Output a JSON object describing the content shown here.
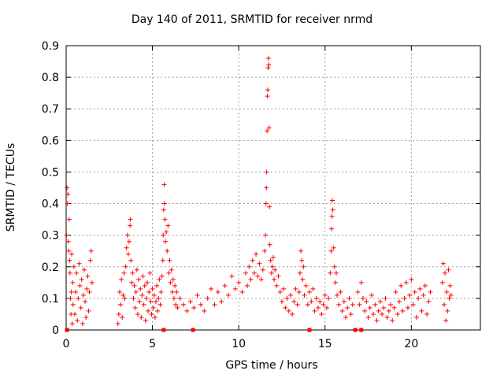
{
  "chart_data": {
    "type": "scatter",
    "title": "Day 140 of 2011, SRMTID for receiver nrmd",
    "xlabel": "GPS time / hours",
    "ylabel": "SRMTID / TECUs",
    "xlim": [
      0,
      24
    ],
    "ylim": [
      0,
      0.9
    ],
    "x_ticks": [
      0,
      5,
      10,
      15,
      20
    ],
    "y_ticks": [
      0,
      0.1,
      0.2,
      0.3,
      0.4,
      0.5,
      0.6,
      0.7,
      0.8,
      0.9
    ],
    "grid": true,
    "marker": "+",
    "color": "#ff0000",
    "gap_marker_times": [
      0.05,
      5.65,
      7.35,
      14.1,
      16.75,
      17.1
    ],
    "series": [
      {
        "name": "SRMTID",
        "points": [
          [
            0.02,
            0.3
          ],
          [
            0.05,
            0.45
          ],
          [
            0.08,
            0.4
          ],
          [
            0.1,
            0.43
          ],
          [
            0.12,
            0.28
          ],
          [
            0.15,
            0.25
          ],
          [
            0.18,
            0.35
          ],
          [
            0.2,
            0.22
          ],
          [
            0.22,
            0.18
          ],
          [
            0.25,
            0.1
          ],
          [
            0.28,
            0.05
          ],
          [
            0.3,
            0.12
          ],
          [
            0.32,
            0.24
          ],
          [
            0.35,
            0.02
          ],
          [
            0.38,
            0.15
          ],
          [
            0.4,
            0.08
          ],
          [
            0.45,
            0.2
          ],
          [
            0.5,
            0.05
          ],
          [
            0.55,
            0.12
          ],
          [
            0.6,
            0.18
          ],
          [
            0.65,
            0.03
          ],
          [
            0.7,
            0.1
          ],
          [
            0.75,
            0.21
          ],
          [
            0.8,
            0.14
          ],
          [
            0.85,
            0.07
          ],
          [
            0.9,
            0.16
          ],
          [
            0.95,
            0.02
          ],
          [
            1.0,
            0.11
          ],
          [
            1.05,
            0.19
          ],
          [
            1.1,
            0.09
          ],
          [
            1.15,
            0.04
          ],
          [
            1.2,
            0.13
          ],
          [
            1.25,
            0.17
          ],
          [
            1.3,
            0.06
          ],
          [
            1.35,
            0.12
          ],
          [
            1.4,
            0.22
          ],
          [
            1.45,
            0.25
          ],
          [
            1.5,
            0.15
          ],
          [
            3.0,
            0.02
          ],
          [
            3.05,
            0.05
          ],
          [
            3.1,
            0.12
          ],
          [
            3.15,
            0.08
          ],
          [
            3.2,
            0.16
          ],
          [
            3.25,
            0.04
          ],
          [
            3.3,
            0.11
          ],
          [
            3.35,
            0.18
          ],
          [
            3.4,
            0.1
          ],
          [
            3.45,
            0.2
          ],
          [
            3.5,
            0.26
          ],
          [
            3.55,
            0.3
          ],
          [
            3.6,
            0.24
          ],
          [
            3.65,
            0.28
          ],
          [
            3.7,
            0.33
          ],
          [
            3.72,
            0.35
          ],
          [
            3.75,
            0.22
          ],
          [
            3.8,
            0.15
          ],
          [
            3.85,
            0.18
          ],
          [
            3.9,
            0.1
          ],
          [
            3.95,
            0.14
          ],
          [
            4.0,
            0.07
          ],
          [
            4.05,
            0.12
          ],
          [
            4.1,
            0.19
          ],
          [
            4.15,
            0.05
          ],
          [
            4.2,
            0.16
          ],
          [
            4.25,
            0.09
          ],
          [
            4.3,
            0.13
          ],
          [
            4.35,
            0.04
          ],
          [
            4.4,
            0.11
          ],
          [
            4.45,
            0.17
          ],
          [
            4.5,
            0.08
          ],
          [
            4.55,
            0.14
          ],
          [
            4.6,
            0.03
          ],
          [
            4.65,
            0.1
          ],
          [
            4.7,
            0.15
          ],
          [
            4.75,
            0.06
          ],
          [
            4.8,
            0.12
          ],
          [
            4.85,
            0.18
          ],
          [
            4.9,
            0.09
          ],
          [
            4.95,
            0.05
          ],
          [
            5.0,
            0.13
          ],
          [
            5.05,
            0.07
          ],
          [
            5.1,
            0.11
          ],
          [
            5.15,
            0.04
          ],
          [
            5.2,
            0.09
          ],
          [
            5.25,
            0.14
          ],
          [
            5.3,
            0.06
          ],
          [
            5.35,
            0.1
          ],
          [
            5.4,
            0.16
          ],
          [
            5.45,
            0.08
          ],
          [
            5.5,
            0.12
          ],
          [
            5.55,
            0.17
          ],
          [
            5.6,
            0.22
          ],
          [
            5.62,
            0.3
          ],
          [
            5.65,
            0.38
          ],
          [
            5.68,
            0.46
          ],
          [
            5.7,
            0.4
          ],
          [
            5.72,
            0.35
          ],
          [
            5.75,
            0.28
          ],
          [
            5.8,
            0.31
          ],
          [
            5.85,
            0.25
          ],
          [
            5.9,
            0.33
          ],
          [
            5.95,
            0.18
          ],
          [
            6.0,
            0.22
          ],
          [
            6.05,
            0.15
          ],
          [
            6.1,
            0.19
          ],
          [
            6.15,
            0.12
          ],
          [
            6.2,
            0.16
          ],
          [
            6.25,
            0.1
          ],
          [
            6.3,
            0.14
          ],
          [
            6.35,
            0.08
          ],
          [
            6.4,
            0.12
          ],
          [
            6.45,
            0.07
          ],
          [
            6.6,
            0.1
          ],
          [
            6.8,
            0.08
          ],
          [
            7.0,
            0.06
          ],
          [
            7.2,
            0.09
          ],
          [
            7.4,
            0.07
          ],
          [
            7.6,
            0.11
          ],
          [
            7.8,
            0.08
          ],
          [
            8.0,
            0.06
          ],
          [
            8.2,
            0.1
          ],
          [
            8.4,
            0.13
          ],
          [
            8.6,
            0.08
          ],
          [
            8.8,
            0.12
          ],
          [
            9.0,
            0.09
          ],
          [
            9.2,
            0.14
          ],
          [
            9.4,
            0.11
          ],
          [
            9.6,
            0.17
          ],
          [
            9.8,
            0.13
          ],
          [
            10.0,
            0.15
          ],
          [
            10.2,
            0.12
          ],
          [
            10.4,
            0.18
          ],
          [
            10.5,
            0.14
          ],
          [
            10.6,
            0.2
          ],
          [
            10.7,
            0.16
          ],
          [
            10.8,
            0.22
          ],
          [
            10.9,
            0.18
          ],
          [
            11.0,
            0.24
          ],
          [
            11.1,
            0.17
          ],
          [
            11.2,
            0.21
          ],
          [
            11.3,
            0.16
          ],
          [
            11.4,
            0.19
          ],
          [
            11.5,
            0.25
          ],
          [
            11.55,
            0.3
          ],
          [
            11.58,
            0.4
          ],
          [
            11.6,
            0.45
          ],
          [
            11.62,
            0.5
          ],
          [
            11.64,
            0.63
          ],
          [
            11.66,
            0.74
          ],
          [
            11.68,
            0.76
          ],
          [
            11.7,
            0.83
          ],
          [
            11.72,
            0.86
          ],
          [
            11.74,
            0.84
          ],
          [
            11.76,
            0.64
          ],
          [
            11.78,
            0.39
          ],
          [
            11.8,
            0.27
          ],
          [
            11.85,
            0.22
          ],
          [
            11.9,
            0.18
          ],
          [
            11.95,
            0.2
          ],
          [
            12.0,
            0.23
          ],
          [
            12.05,
            0.16
          ],
          [
            12.1,
            0.19
          ],
          [
            12.2,
            0.14
          ],
          [
            12.3,
            0.17
          ],
          [
            12.4,
            0.12
          ],
          [
            12.5,
            0.09
          ],
          [
            12.6,
            0.13
          ],
          [
            12.7,
            0.07
          ],
          [
            12.8,
            0.1
          ],
          [
            12.9,
            0.06
          ],
          [
            13.0,
            0.11
          ],
          [
            13.1,
            0.05
          ],
          [
            13.2,
            0.09
          ],
          [
            13.3,
            0.13
          ],
          [
            13.4,
            0.08
          ],
          [
            13.5,
            0.12
          ],
          [
            13.55,
            0.18
          ],
          [
            13.6,
            0.25
          ],
          [
            13.65,
            0.22
          ],
          [
            13.7,
            0.16
          ],
          [
            13.75,
            0.2
          ],
          [
            13.8,
            0.11
          ],
          [
            13.9,
            0.14
          ],
          [
            14.0,
            0.08
          ],
          [
            14.1,
            0.12
          ],
          [
            14.2,
            0.09
          ],
          [
            14.3,
            0.13
          ],
          [
            14.4,
            0.06
          ],
          [
            14.5,
            0.1
          ],
          [
            14.6,
            0.07
          ],
          [
            14.7,
            0.09
          ],
          [
            14.8,
            0.05
          ],
          [
            14.9,
            0.08
          ],
          [
            15.0,
            0.11
          ],
          [
            15.1,
            0.07
          ],
          [
            15.2,
            0.1
          ],
          [
            15.3,
            0.18
          ],
          [
            15.35,
            0.25
          ],
          [
            15.38,
            0.32
          ],
          [
            15.4,
            0.36
          ],
          [
            15.42,
            0.41
          ],
          [
            15.45,
            0.38
          ],
          [
            15.5,
            0.26
          ],
          [
            15.55,
            0.2
          ],
          [
            15.6,
            0.15
          ],
          [
            15.65,
            0.18
          ],
          [
            15.7,
            0.11
          ],
          [
            15.8,
            0.08
          ],
          [
            15.9,
            0.12
          ],
          [
            16.0,
            0.06
          ],
          [
            16.1,
            0.09
          ],
          [
            16.2,
            0.04
          ],
          [
            16.3,
            0.07
          ],
          [
            16.4,
            0.1
          ],
          [
            16.5,
            0.05
          ],
          [
            16.6,
            0.08
          ],
          [
            16.9,
            0.12
          ],
          [
            17.0,
            0.08
          ],
          [
            17.1,
            0.15
          ],
          [
            17.2,
            0.1
          ],
          [
            17.3,
            0.06
          ],
          [
            17.4,
            0.09
          ],
          [
            17.5,
            0.04
          ],
          [
            17.6,
            0.07
          ],
          [
            17.7,
            0.11
          ],
          [
            17.8,
            0.05
          ],
          [
            17.9,
            0.08
          ],
          [
            18.0,
            0.03
          ],
          [
            18.1,
            0.06
          ],
          [
            18.2,
            0.09
          ],
          [
            18.3,
            0.05
          ],
          [
            18.4,
            0.07
          ],
          [
            18.5,
            0.1
          ],
          [
            18.6,
            0.04
          ],
          [
            18.7,
            0.06
          ],
          [
            18.8,
            0.08
          ],
          [
            18.9,
            0.03
          ],
          [
            19.0,
            0.07
          ],
          [
            19.1,
            0.12
          ],
          [
            19.2,
            0.05
          ],
          [
            19.3,
            0.09
          ],
          [
            19.4,
            0.14
          ],
          [
            19.5,
            0.06
          ],
          [
            19.6,
            0.1
          ],
          [
            19.7,
            0.15
          ],
          [
            19.8,
            0.07
          ],
          [
            19.9,
            0.11
          ],
          [
            20.0,
            0.16
          ],
          [
            20.1,
            0.08
          ],
          [
            20.2,
            0.12
          ],
          [
            20.3,
            0.04
          ],
          [
            20.4,
            0.1
          ],
          [
            20.5,
            0.13
          ],
          [
            20.6,
            0.06
          ],
          [
            20.7,
            0.11
          ],
          [
            20.8,
            0.14
          ],
          [
            20.9,
            0.05
          ],
          [
            21.0,
            0.09
          ],
          [
            21.1,
            0.12
          ],
          [
            21.8,
            0.15
          ],
          [
            21.85,
            0.21
          ],
          [
            21.9,
            0.08
          ],
          [
            21.95,
            0.18
          ],
          [
            22.0,
            0.03
          ],
          [
            22.05,
            0.12
          ],
          [
            22.1,
            0.06
          ],
          [
            22.15,
            0.19
          ],
          [
            22.2,
            0.1
          ],
          [
            22.25,
            0.14
          ],
          [
            22.3,
            0.11
          ]
        ]
      }
    ]
  }
}
